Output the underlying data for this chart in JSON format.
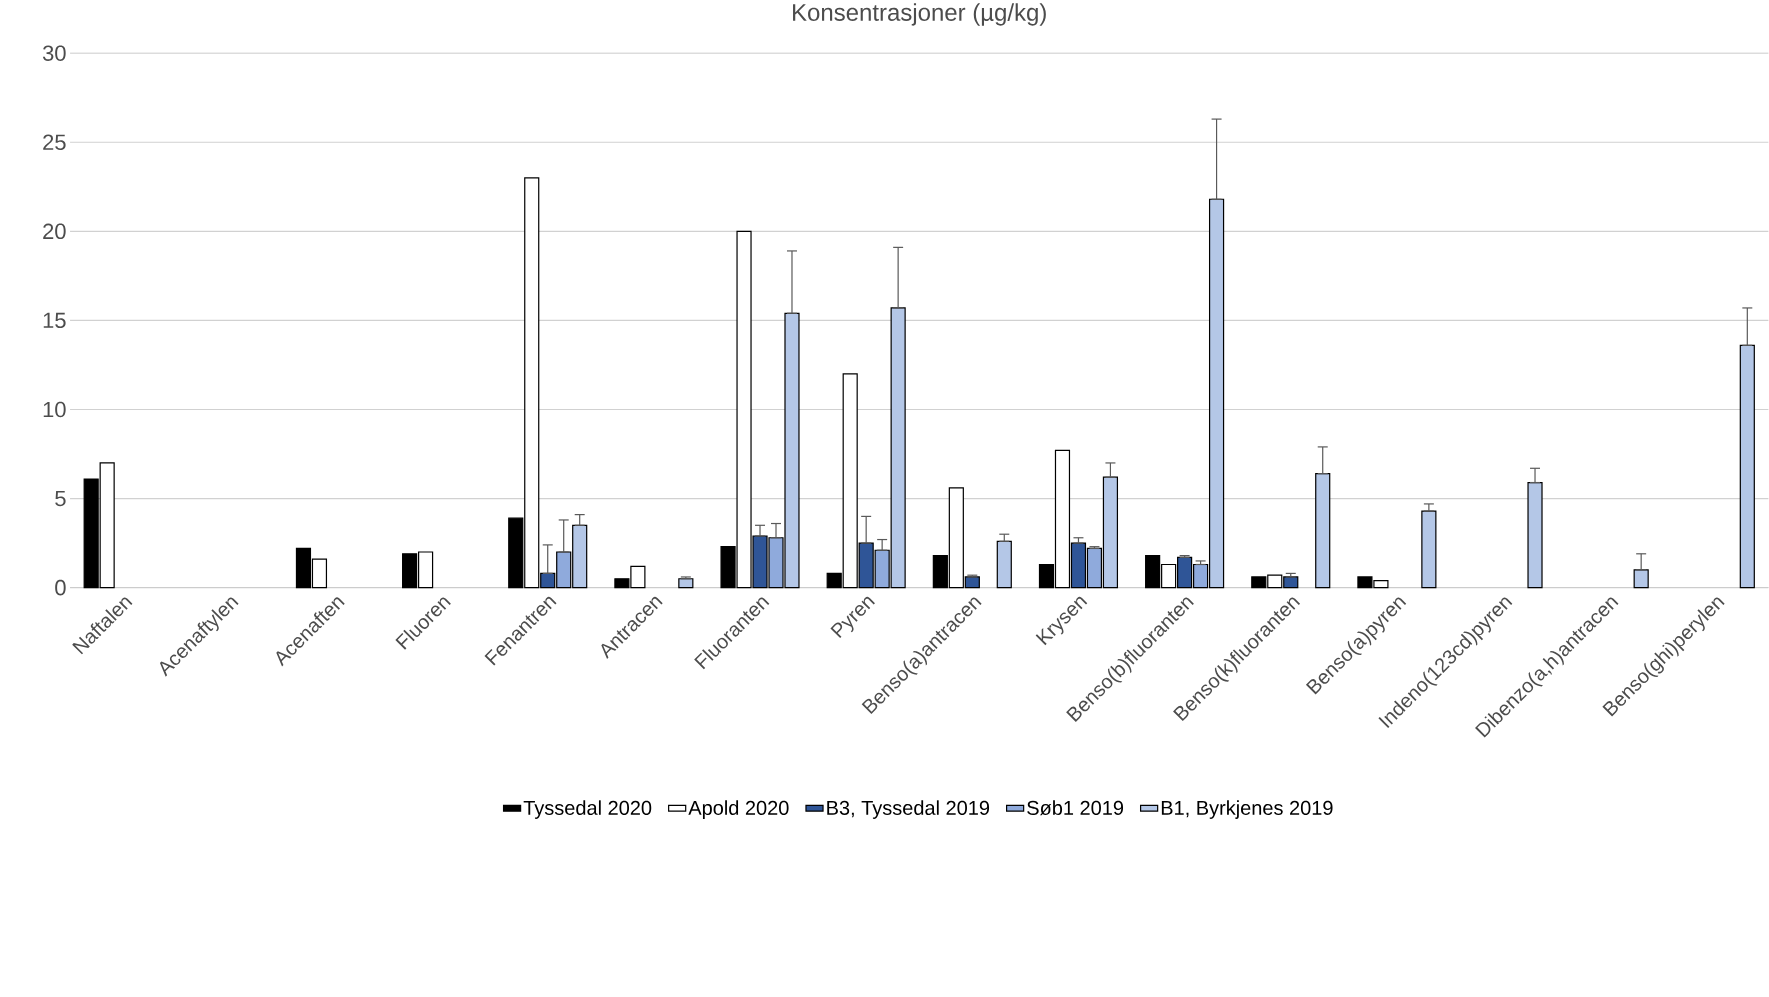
{
  "chart_data": {
    "type": "bar",
    "title": "Konsentrasjoner (µg/kg)",
    "categories": [
      "Naftalen",
      "Acenaftylen",
      "Acenaften",
      "Fluoren",
      "Fenantren",
      "Antracen",
      "Fluoranten",
      "Pyren",
      "Benso(a)antracen",
      "Krysen",
      "Benso(b)fluoranten",
      "Benso(k)fluoranten",
      "Benso(a)pyren",
      "Indeno(123cd)pyren",
      "Dibenzo(a,h)antracen",
      "Benso(ghi)perylen"
    ],
    "series": [
      {
        "name": "Tyssedal 2020",
        "color": "#000000",
        "values": [
          6.1,
          null,
          2.2,
          1.9,
          3.9,
          0.5,
          2.3,
          0.8,
          1.8,
          1.3,
          1.8,
          0.6,
          0.6,
          null,
          null,
          null
        ]
      },
      {
        "name": "Apold 2020",
        "color": "#ffffff",
        "values": [
          7.0,
          null,
          1.6,
          2.0,
          23.0,
          1.2,
          20.0,
          12.0,
          5.6,
          7.7,
          1.3,
          0.7,
          0.4,
          null,
          null,
          null
        ]
      },
      {
        "name": "B3, Tyssedal 2019",
        "color": "#2f5597",
        "values": [
          null,
          null,
          null,
          null,
          0.8,
          null,
          2.9,
          2.5,
          0.6,
          2.5,
          1.7,
          0.6,
          null,
          null,
          null,
          null
        ],
        "errors": [
          null,
          null,
          null,
          null,
          [
            0.8,
            2.4
          ],
          null,
          [
            2.9,
            3.5
          ],
          [
            2.5,
            4.0
          ],
          [
            0.6,
            0.7
          ],
          [
            2.5,
            2.8
          ],
          [
            1.7,
            1.8
          ],
          [
            0.6,
            0.8
          ],
          null,
          null,
          null,
          null
        ]
      },
      {
        "name": "Søb1 2019",
        "color": "#8faadc",
        "values": [
          null,
          null,
          null,
          null,
          2.0,
          null,
          2.8,
          2.1,
          null,
          2.2,
          1.3,
          null,
          null,
          null,
          null,
          null
        ],
        "errors": [
          null,
          null,
          null,
          null,
          [
            2.0,
            3.8
          ],
          null,
          [
            2.8,
            3.6
          ],
          [
            2.1,
            2.7
          ],
          null,
          [
            2.2,
            2.3
          ],
          [
            1.3,
            1.5
          ],
          null,
          null,
          null,
          null,
          null
        ]
      },
      {
        "name": "B1, Byrkjenes 2019",
        "color": "#b4c7e7",
        "values": [
          null,
          null,
          null,
          null,
          3.5,
          0.5,
          15.4,
          15.7,
          2.6,
          6.2,
          21.8,
          6.4,
          4.3,
          5.9,
          1.0,
          13.6
        ],
        "errors": [
          null,
          null,
          null,
          null,
          [
            3.5,
            4.1
          ],
          [
            0.5,
            0.6
          ],
          [
            15.4,
            18.9
          ],
          [
            15.7,
            19.1
          ],
          [
            2.6,
            3.0
          ],
          [
            6.2,
            7.0
          ],
          [
            21.8,
            26.3
          ],
          [
            6.4,
            7.9
          ],
          [
            4.3,
            4.7
          ],
          [
            5.9,
            6.7
          ],
          [
            1.0,
            1.9
          ],
          [
            13.6,
            15.7
          ]
        ]
      }
    ],
    "ylim": [
      0,
      30
    ],
    "yticks": [
      0,
      5,
      10,
      15,
      20,
      25,
      30
    ],
    "grid": "y",
    "legend": "bottom"
  }
}
